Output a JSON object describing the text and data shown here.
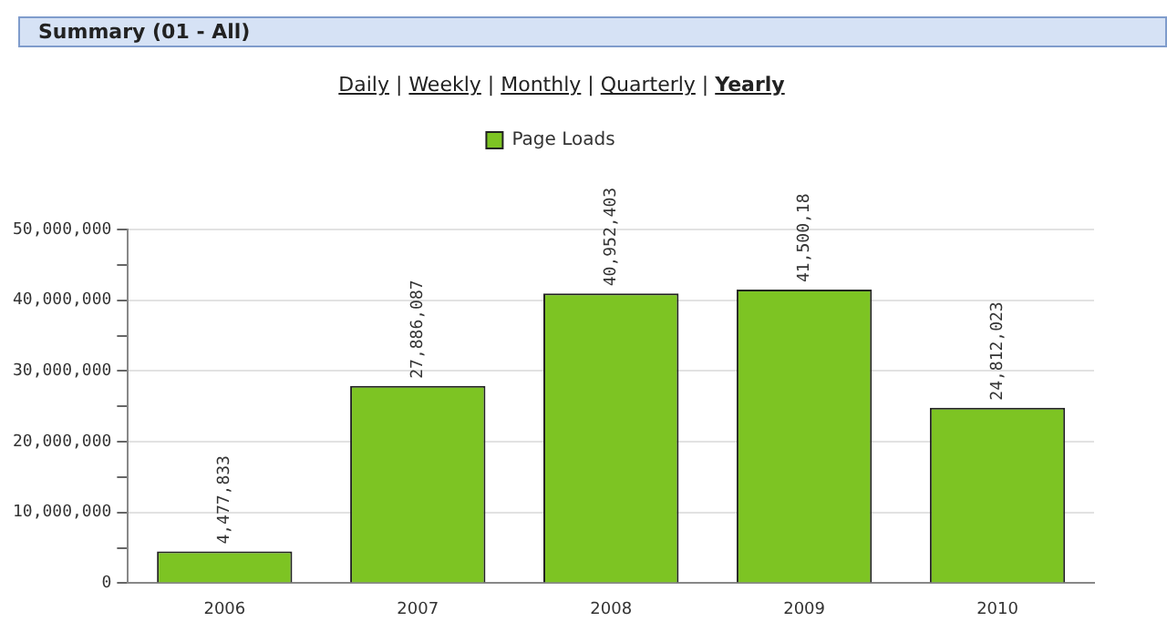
{
  "chart_data": {
    "type": "bar",
    "title": "Summary (01 - All)",
    "annotations": [
      "Daily | Weekly | Monthly | Quarterly | Yearly"
    ],
    "categories": [
      "2006",
      "2007",
      "2008",
      "2009",
      "2010"
    ],
    "series": [
      {
        "name": "Page Loads",
        "color": "#7dc423",
        "values": [
          4477833,
          27886087,
          40952403,
          41500180,
          24812023
        ]
      }
    ],
    "value_labels": [
      "4,477,833",
      "27,886,087",
      "40,952,403",
      "41,500,18",
      "24,812,023"
    ],
    "ylim": [
      0,
      50000000
    ],
    "yticks": [
      {
        "value": 0,
        "label": "0"
      },
      {
        "value": 5000000,
        "label": null
      },
      {
        "value": 10000000,
        "label": "10,000,000"
      },
      {
        "value": 15000000,
        "label": null
      },
      {
        "value": 20000000,
        "label": "20,000,000"
      },
      {
        "value": 25000000,
        "label": null
      },
      {
        "value": 30000000,
        "label": "30,000,000"
      },
      {
        "value": 35000000,
        "label": null
      },
      {
        "value": 40000000,
        "label": "40,000,000"
      },
      {
        "value": 45000000,
        "label": null
      },
      {
        "value": 50000000,
        "label": "50,000,000"
      }
    ],
    "grid": "y",
    "legend": "top"
  }
}
